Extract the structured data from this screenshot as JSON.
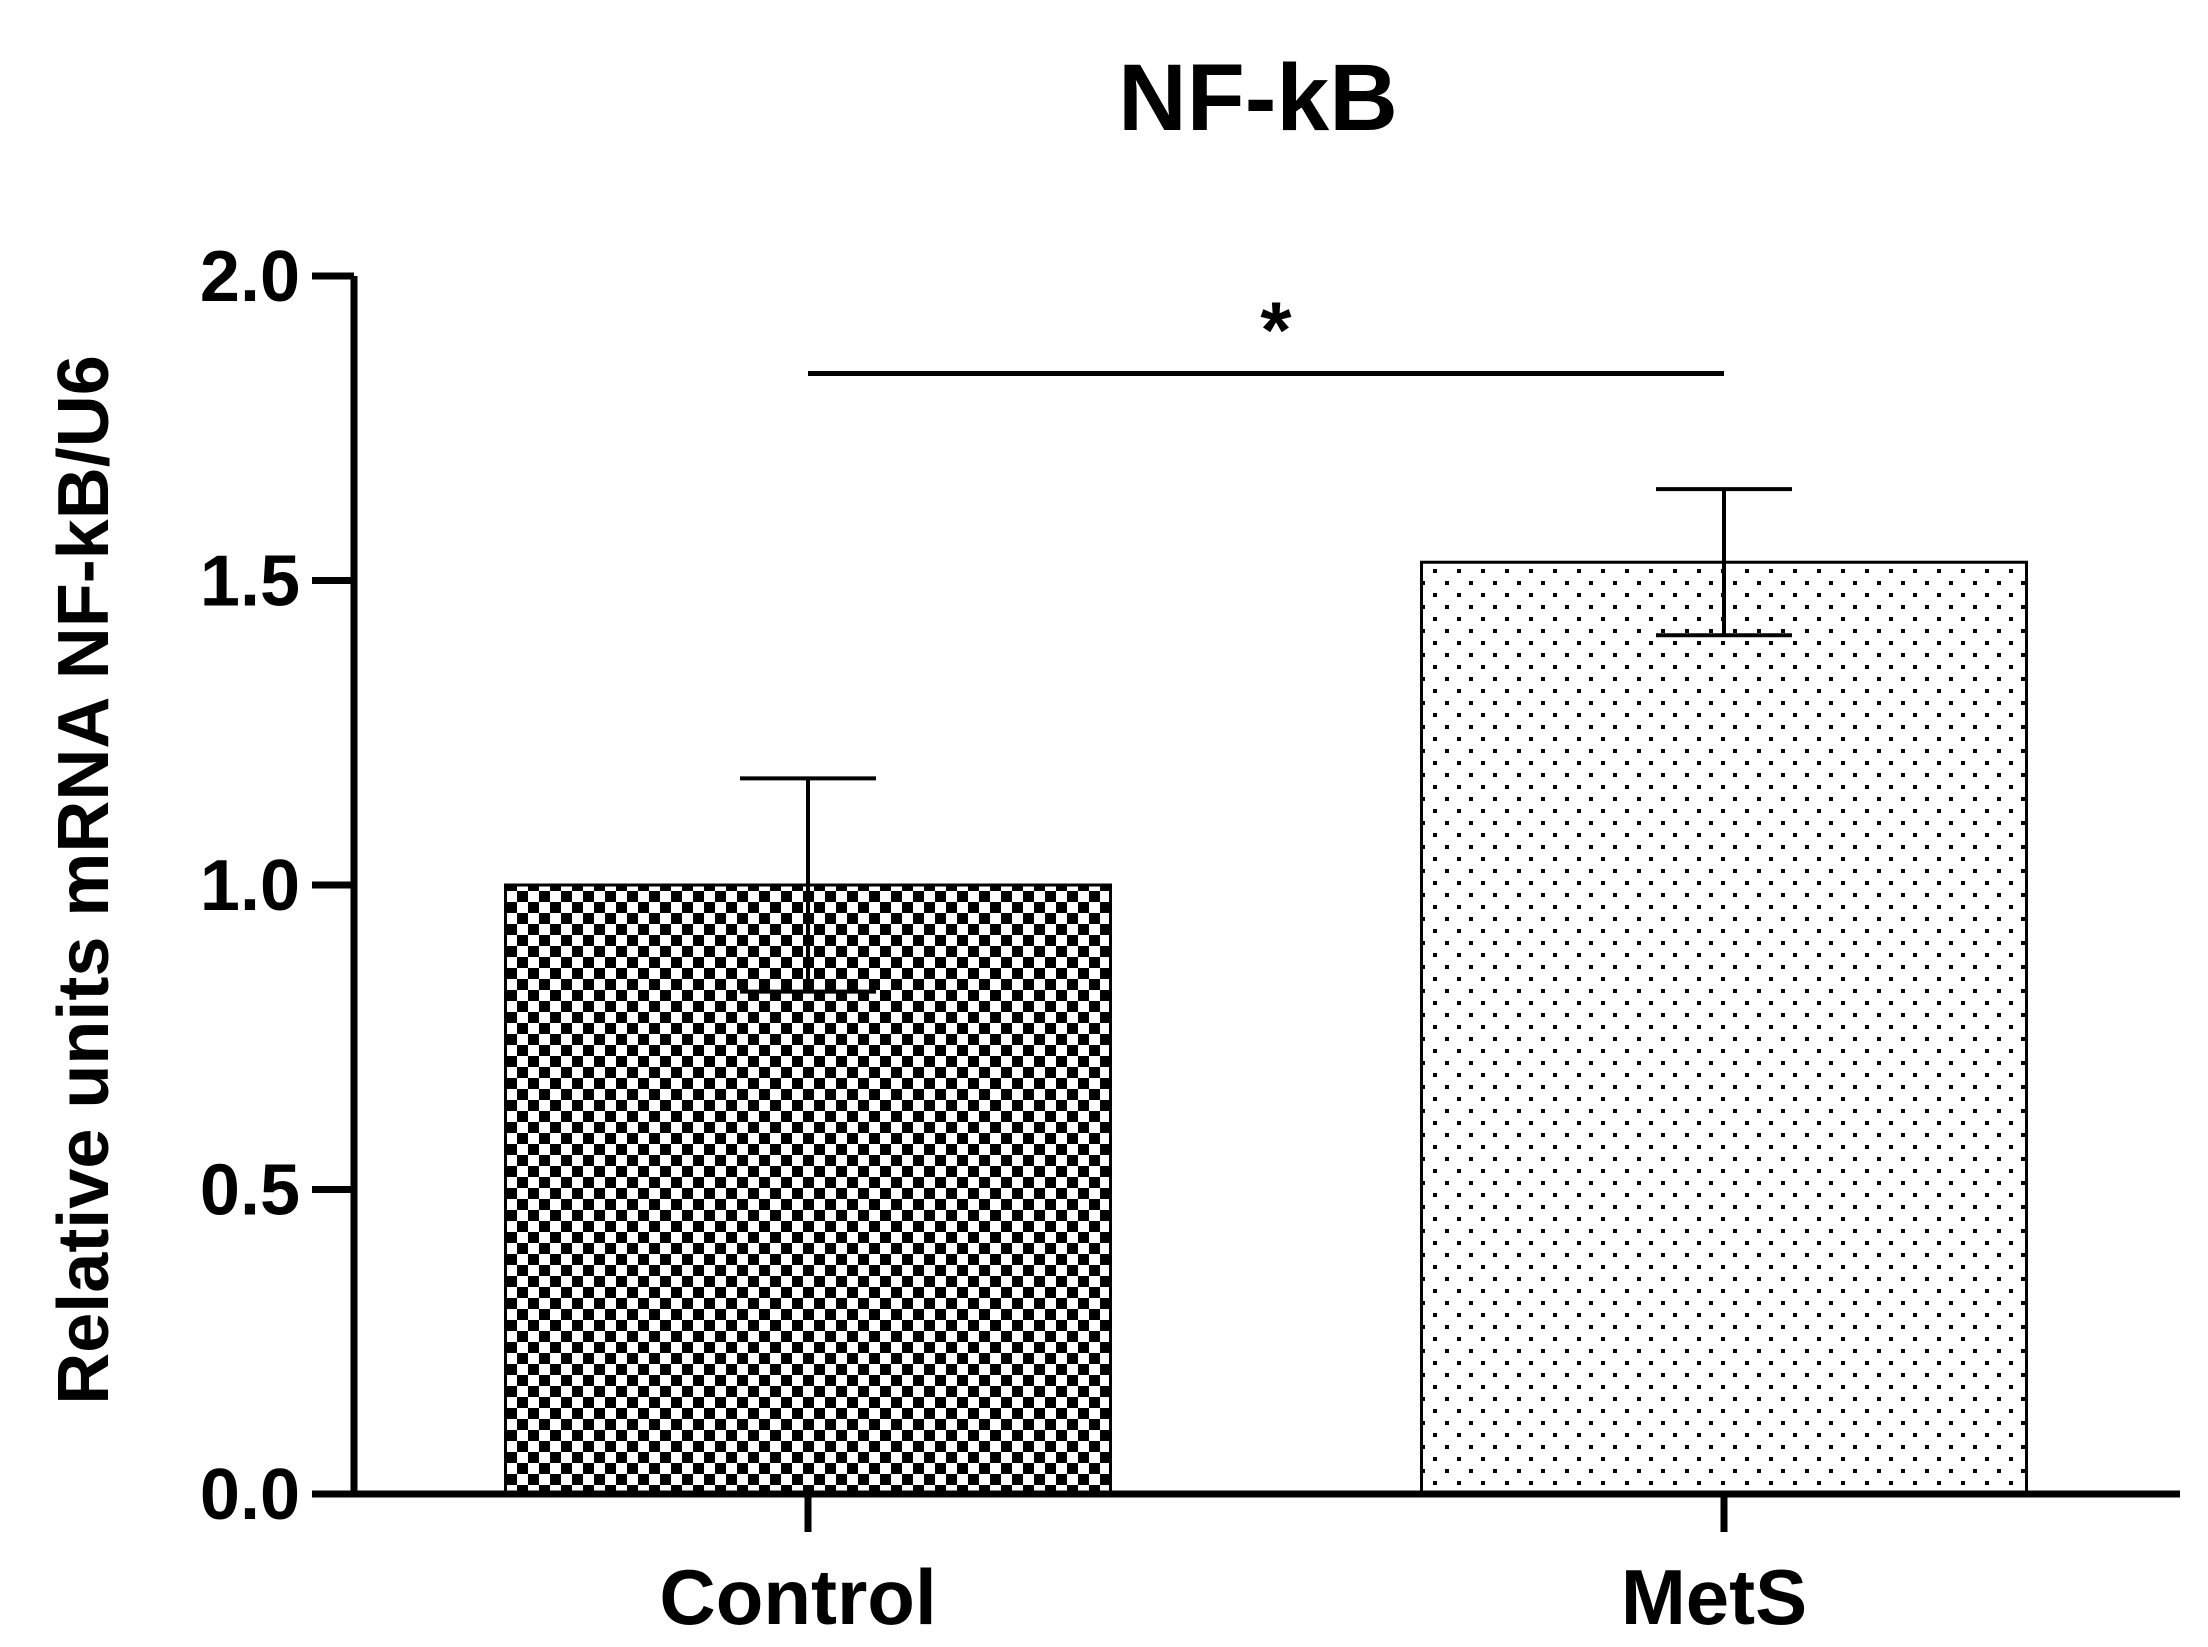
{
  "chart_data": {
    "type": "bar",
    "title": "NF-kB",
    "xlabel": "",
    "ylabel": "Relative units mRNA NF-kB/U6",
    "ylim": [
      0,
      2.0
    ],
    "yticks": [
      0.0,
      0.5,
      1.0,
      1.5,
      2.0
    ],
    "ytick_labels": [
      "0.0",
      "0.5",
      "1.0",
      "1.5",
      "2.0"
    ],
    "categories": [
      "Control",
      "MetS"
    ],
    "values": [
      1.0,
      1.53
    ],
    "errors": [
      0.175,
      0.12
    ],
    "patterns": [
      "checkerboard",
      "dots"
    ],
    "significance": {
      "from": "Control",
      "to": "MetS",
      "y": 1.84,
      "label": "*"
    },
    "grid": false,
    "legend": "none"
  },
  "colors": {
    "ink": "#000000",
    "background": "#ffffff"
  }
}
